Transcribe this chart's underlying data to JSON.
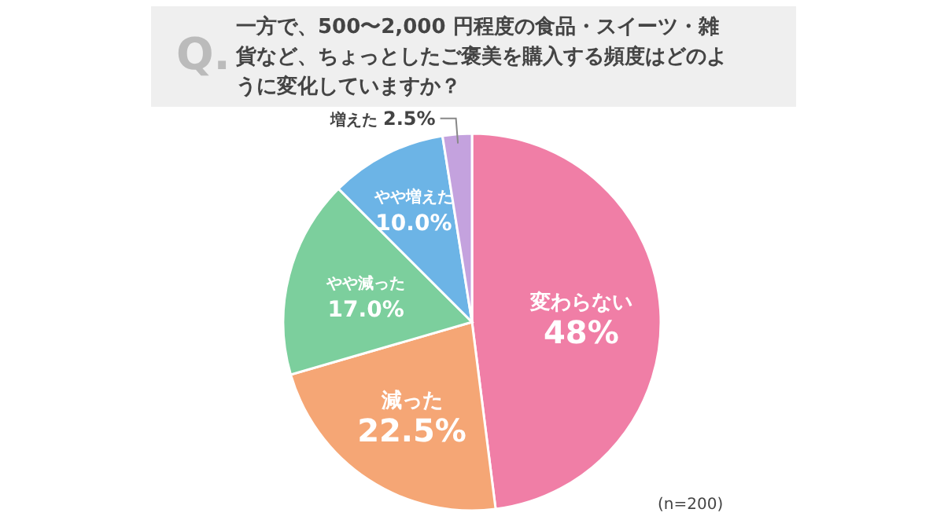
{
  "chart_data": {
    "type": "pie",
    "title": "一方で、500〜2,000 円程度の食品・スイーツ・雑貨など、ちょっとしたご褒美を購入する頻度はどのように変化していますか？",
    "categories": [
      "変わらない",
      "減った",
      "やや減った",
      "やや増えた",
      "増えた"
    ],
    "values": [
      48,
      22.5,
      17.0,
      10.0,
      2.5
    ],
    "value_labels": [
      "48%",
      "22.5%",
      "17.0%",
      "10.0%",
      "2.5%"
    ],
    "colors": [
      "#f07ea6",
      "#f5a675",
      "#7ccf9d",
      "#6cb4e6",
      "#c4a2de"
    ],
    "annotations": [
      "Q.",
      "(n=200)"
    ]
  }
}
